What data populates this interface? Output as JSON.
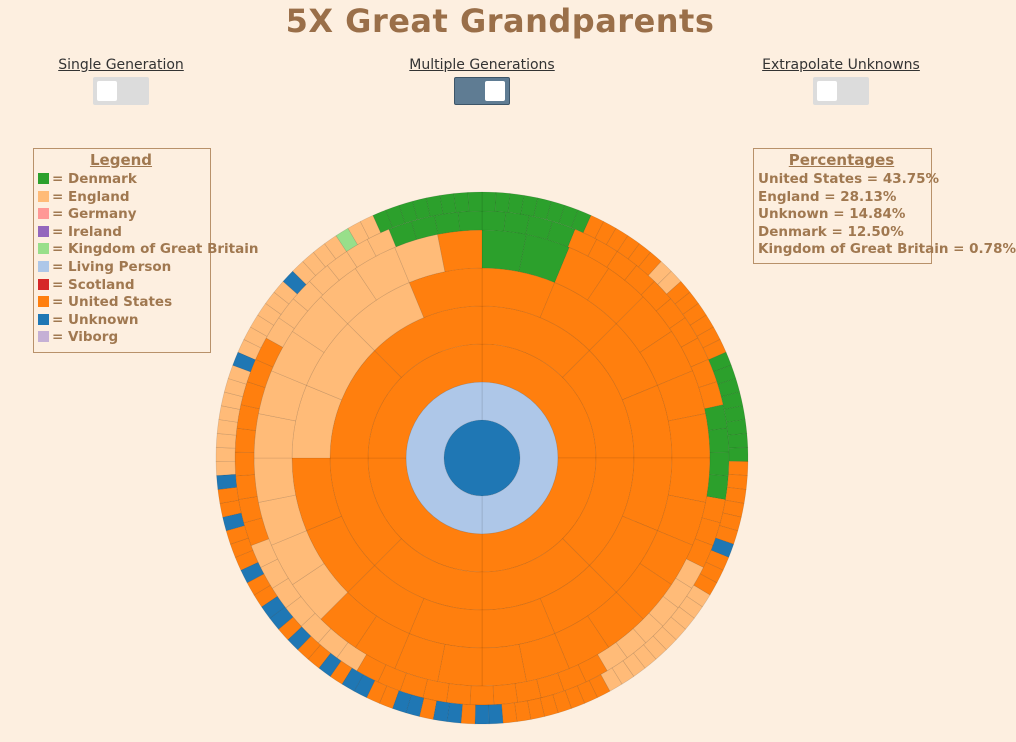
{
  "title": "5X Great Grandparents",
  "toggles": [
    {
      "label": "Single Generation",
      "state": "off"
    },
    {
      "label": "Multiple Generations",
      "state": "on"
    },
    {
      "label": "Extrapolate Unknowns",
      "state": "off"
    }
  ],
  "legend": {
    "title": "Legend",
    "items": [
      {
        "label": "= Denmark",
        "color": "#2ca02c"
      },
      {
        "label": "= England",
        "color": "#ffbb78"
      },
      {
        "label": "= Germany",
        "color": "#ff9896"
      },
      {
        "label": "= Ireland",
        "color": "#9467bd"
      },
      {
        "label": "= Kingdom of Great Britain",
        "color": "#98df8a"
      },
      {
        "label": "= Living Person",
        "color": "#aec7e8"
      },
      {
        "label": "= Scotland",
        "color": "#d62728"
      },
      {
        "label": "= United States",
        "color": "#ff7f0e"
      },
      {
        "label": "= Unknown",
        "color": "#1f77b4"
      },
      {
        "label": "= Viborg",
        "color": "#c5b0d5"
      }
    ]
  },
  "percentages": {
    "title": "Percentages",
    "items": [
      {
        "label": "United States = 43.75%"
      },
      {
        "label": "England = 28.13%"
      },
      {
        "label": "Unknown = 14.84%"
      },
      {
        "label": "Denmark = 12.50%"
      },
      {
        "label": "Kingdom of Great Britain = 0.78%"
      }
    ]
  },
  "chart_data": {
    "type": "sunburst",
    "generations": 8,
    "colors": {
      "D": "#2ca02c",
      "E": "#ffbb78",
      "K": "#98df8a",
      "L": "#aec7e8",
      "U": "#ff7f0e",
      "N": "#1f77b4"
    },
    "key": {
      "D": "Denmark",
      "E": "England",
      "K": "Kingdom of Great Britain",
      "L": "Living Person",
      "U": "United States",
      "N": "Unknown"
    },
    "percent_by_origin": [
      {
        "origin": "United States",
        "percent": 43.75
      },
      {
        "origin": "England",
        "percent": 28.13
      },
      {
        "origin": "Unknown",
        "percent": 14.84
      },
      {
        "origin": "Denmark",
        "percent": 12.5
      },
      {
        "origin": "Kingdom of Great Britain",
        "percent": 0.78
      }
    ],
    "rings": [
      "N",
      "LL",
      "UUUU",
      "UUUUUUUU",
      "UUUUUUUUUUUUEEEU",
      "DDUUUUUUUUUUUUUUUUUUEEEEEEEEEEEU",
      "DDDDUUUUUUUUUUDDDDUUUEEEEEEUUUUUUUUUUUEEEEEEEUUUUUUUUUEEEEEEEDDDD",
      "DDDDDDDDUUUUUUEEUUUUUUDDDDDDDDUUUUUUNUUUEEEEEEEEEEUUUUUUUUNNUNNUNNUUNNUNUUNUNNUUNUUUNUUNEEEEEEEENEEEEEENEEEEKEEDDDDDDDD"
    ]
  }
}
